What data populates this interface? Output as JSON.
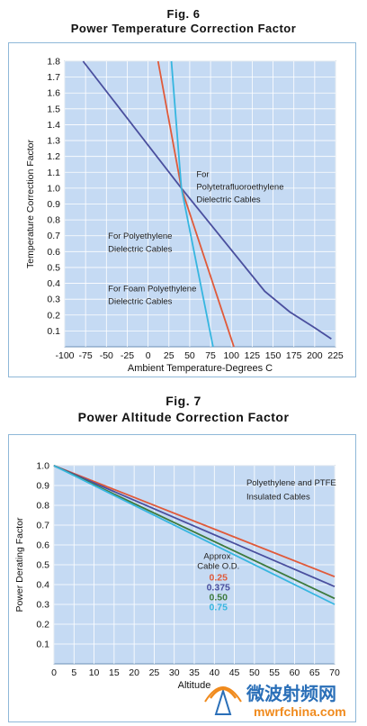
{
  "fig6": {
    "label": "Fig. 6",
    "title": "Power Temperature Correction Factor"
  },
  "fig7": {
    "label": "Fig. 7",
    "title": "Power Altitude Correction Factor"
  },
  "watermark": {
    "text_cn": "微波射频网",
    "text_url": "mwrfchina.com"
  },
  "chart_data": [
    {
      "type": "line",
      "xlabel": "Ambient Temperature-Degrees C",
      "ylabel": "Temperature Correction Factor",
      "xlim": [
        -100,
        225
      ],
      "ylim": [
        0,
        1.8
      ],
      "xticks": [
        "-100",
        "-75",
        "-50",
        "-25",
        "0",
        "25",
        "50",
        "75",
        "100",
        "125",
        "150",
        "175",
        "200",
        "225"
      ],
      "yticks": [
        "0.1",
        "0.2",
        "0.3",
        "0.4",
        "0.5",
        "0.6",
        "0.7",
        "0.8",
        "0.9",
        "1.0",
        "1.1",
        "1.2",
        "1.3",
        "1.4",
        "1.5",
        "1.6",
        "1.7",
        "1.8"
      ],
      "grid": true,
      "background": "#c5daf3",
      "series": [
        {
          "color": "#4a4f9e",
          "x": [
            -78,
            40,
            140,
            170,
            200,
            220
          ],
          "y": [
            1.8,
            1.0,
            0.35,
            0.22,
            0.12,
            0.05
          ]
        },
        {
          "color": "#e05a3a",
          "x": [
            12,
            40,
            103
          ],
          "y": [
            1.8,
            1.0,
            0.0
          ]
        },
        {
          "color": "#36b6e0",
          "x": [
            28,
            40,
            78
          ],
          "y": [
            1.8,
            1.0,
            0.0
          ]
        }
      ],
      "annotations": [
        {
          "text": "For",
          "x": 58,
          "y": 1.07
        },
        {
          "text": "Polytetrafluoroethylene",
          "x": 58,
          "y": 0.99
        },
        {
          "text": "Dielectric Cables",
          "x": 58,
          "y": 0.91
        },
        {
          "text": "For Polyethylene",
          "x": -48,
          "y": 0.68
        },
        {
          "text": "Dielectric Cables",
          "x": -48,
          "y": 0.6
        },
        {
          "text": "For Foam Polyethylene",
          "x": -48,
          "y": 0.35
        },
        {
          "text": "Dielectric Cables",
          "x": -48,
          "y": 0.27
        }
      ]
    },
    {
      "type": "line",
      "xlabel": "Altitude",
      "ylabel": "Power Derating Factor",
      "xlim": [
        0,
        70
      ],
      "ylim": [
        0,
        1.0
      ],
      "xticks": [
        "0",
        "5",
        "10",
        "15",
        "20",
        "25",
        "30",
        "35",
        "40",
        "45",
        "50",
        "55",
        "60",
        "65",
        "70"
      ],
      "yticks": [
        "0.1",
        "0.2",
        "0.3",
        "0.4",
        "0.5",
        "0.6",
        "0.7",
        "0.8",
        "0.9",
        "1.0"
      ],
      "grid": true,
      "background": "#c5daf3",
      "series": [
        {
          "name": "0.25",
          "color": "#e05a3a",
          "x": [
            0,
            70
          ],
          "y": [
            1.0,
            0.44
          ]
        },
        {
          "name": "0.375",
          "color": "#4a4f9e",
          "x": [
            0,
            70
          ],
          "y": [
            1.0,
            0.39
          ]
        },
        {
          "name": "0.50",
          "color": "#3d7a3d",
          "x": [
            0,
            70
          ],
          "y": [
            1.0,
            0.33
          ]
        },
        {
          "name": "0.75",
          "color": "#36b6e0",
          "x": [
            0,
            70
          ],
          "y": [
            1.0,
            0.3
          ]
        }
      ],
      "annotations": [
        {
          "text": "Polyethylene and PTFE",
          "x": 48,
          "y": 0.9
        },
        {
          "text": "Insulated Cables",
          "x": 48,
          "y": 0.83
        }
      ],
      "legend": {
        "title": [
          "Approx.",
          "Cable O.D."
        ],
        "placement": "center-right"
      }
    }
  ]
}
